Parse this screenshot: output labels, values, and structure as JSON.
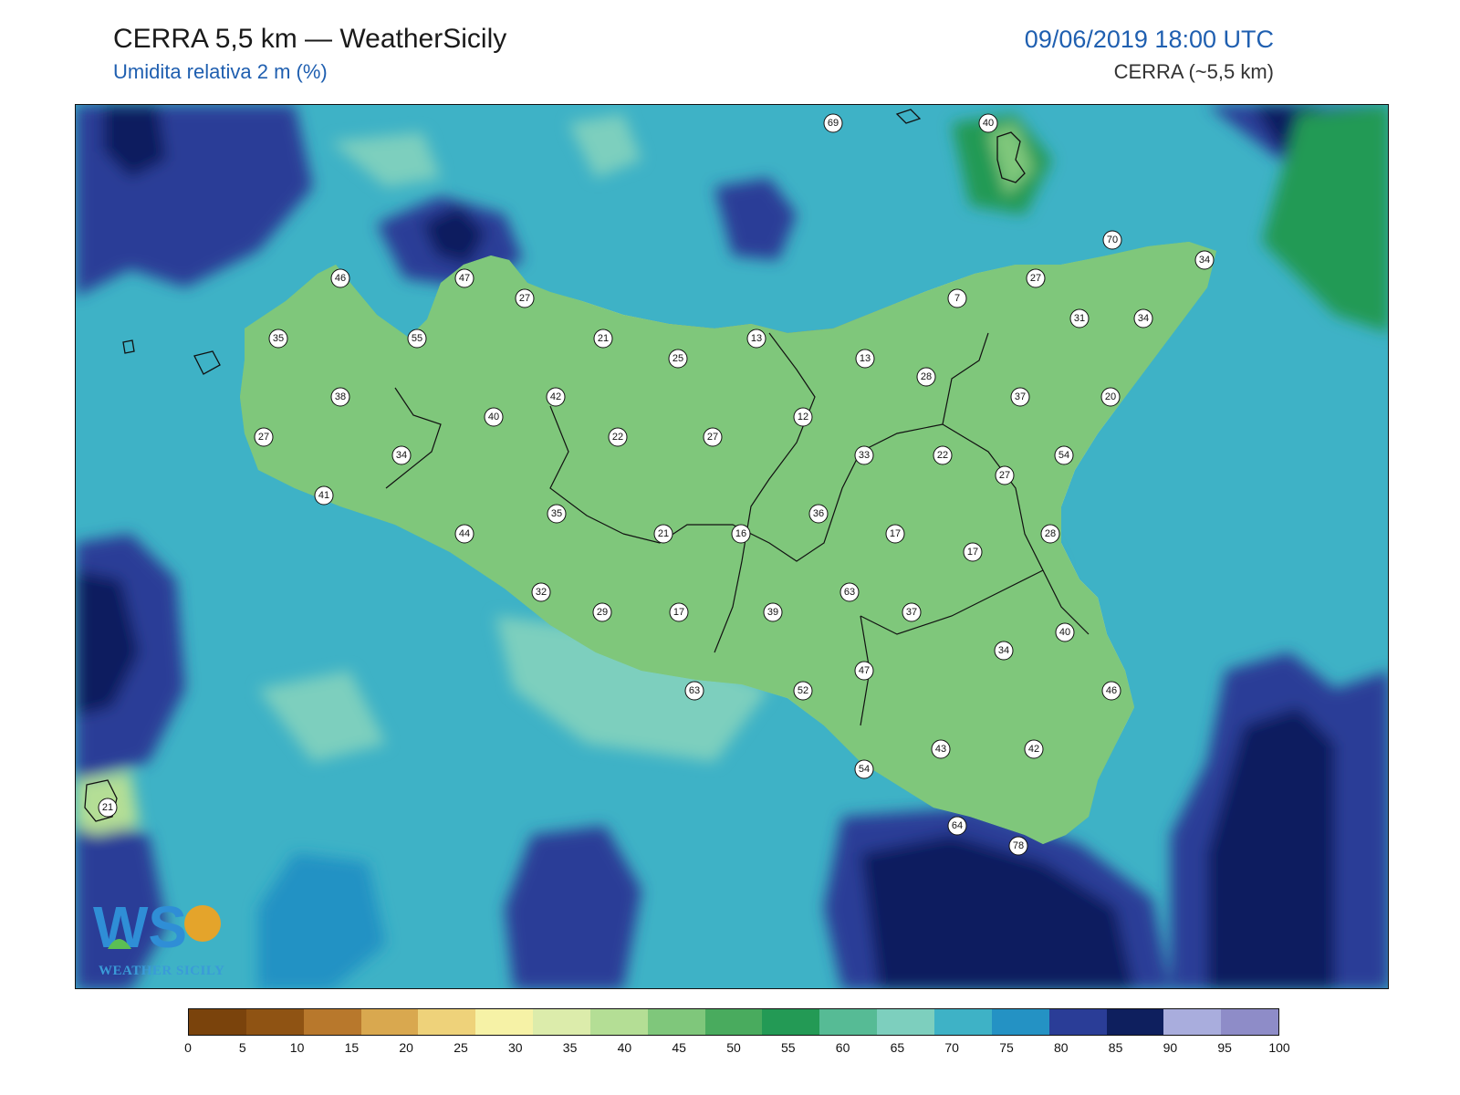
{
  "header": {
    "title": "CERRA 5,5 km — WeatherSicily",
    "subtitle": "Umidita relativa 2 m (%)",
    "datetime": "09/06/2019 18:00 UTC",
    "model": "CERRA (~5,5 km)"
  },
  "logo": {
    "text": "WEATHER SICILY",
    "mark": "WS"
  },
  "colorbar": {
    "colors": [
      "#7a430c",
      "#8f5313",
      "#b8782c",
      "#d9a84f",
      "#eed27a",
      "#f6f2a6",
      "#dcecab",
      "#b4de95",
      "#7fc77b",
      "#49ab5e",
      "#239a55",
      "#56bb95",
      "#7dcfbe",
      "#3eb2c6",
      "#2492c4",
      "#2a3d97",
      "#0e1f5e",
      "#a9addd",
      "#8e8cc8"
    ],
    "ticks": [
      "0",
      "5",
      "10",
      "15",
      "20",
      "25",
      "30",
      "35",
      "40",
      "45",
      "50",
      "55",
      "60",
      "65",
      "70",
      "75",
      "80",
      "85",
      "90",
      "95",
      "100"
    ]
  },
  "stations": [
    {
      "v": "69"
    },
    {
      "v": "40"
    },
    {
      "v": "70"
    },
    {
      "v": "34"
    },
    {
      "v": "46"
    },
    {
      "v": "47"
    },
    {
      "v": "27"
    },
    {
      "v": "7"
    },
    {
      "v": "31"
    },
    {
      "v": "34"
    },
    {
      "v": "27"
    },
    {
      "v": "35"
    },
    {
      "v": "55"
    },
    {
      "v": "21"
    },
    {
      "v": "13"
    },
    {
      "v": "25"
    },
    {
      "v": "13"
    },
    {
      "v": "28"
    },
    {
      "v": "38"
    },
    {
      "v": "42"
    },
    {
      "v": "40"
    },
    {
      "v": "37"
    },
    {
      "v": "20"
    },
    {
      "v": "12"
    },
    {
      "v": "27"
    },
    {
      "v": "22"
    },
    {
      "v": "27"
    },
    {
      "v": "34"
    },
    {
      "v": "33"
    },
    {
      "v": "22"
    },
    {
      "v": "54"
    },
    {
      "v": "27"
    },
    {
      "v": "41"
    },
    {
      "v": "35"
    },
    {
      "v": "36"
    },
    {
      "v": "44"
    },
    {
      "v": "21"
    },
    {
      "v": "16"
    },
    {
      "v": "17"
    },
    {
      "v": "28"
    },
    {
      "v": "17"
    },
    {
      "v": "32"
    },
    {
      "v": "63"
    },
    {
      "v": "29"
    },
    {
      "v": "17"
    },
    {
      "v": "39"
    },
    {
      "v": "37"
    },
    {
      "v": "40"
    },
    {
      "v": "34"
    },
    {
      "v": "47"
    },
    {
      "v": "63"
    },
    {
      "v": "52"
    },
    {
      "v": "46"
    },
    {
      "v": "43"
    },
    {
      "v": "42"
    },
    {
      "v": "54"
    },
    {
      "v": "21"
    },
    {
      "v": "64"
    },
    {
      "v": "78"
    }
  ]
}
